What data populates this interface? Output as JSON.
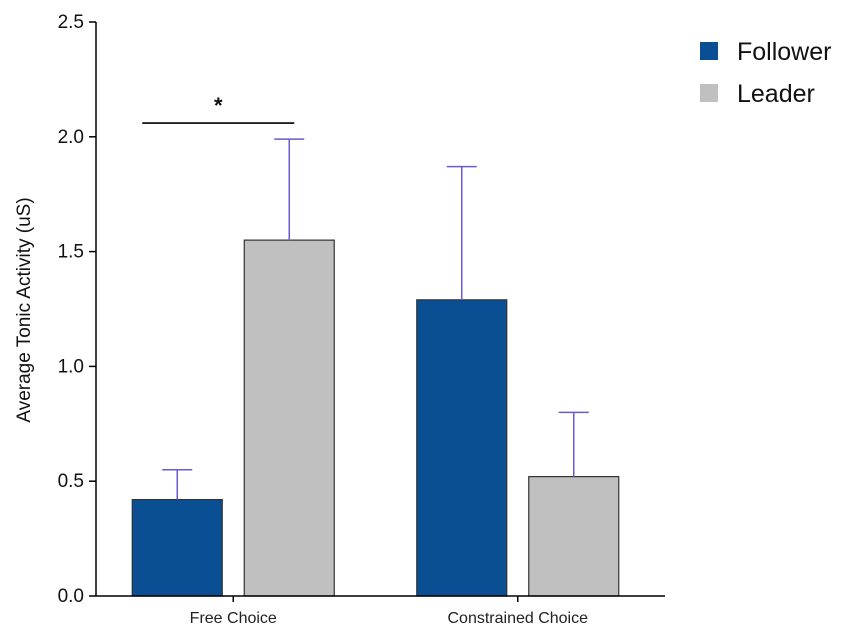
{
  "chart_data": {
    "type": "bar",
    "title": "",
    "xlabel": "",
    "ylabel": "Average Tonic Activity (uS)",
    "ylim": [
      0,
      2.5
    ],
    "yticks": [
      "0.0",
      "0.5",
      "1.0",
      "1.5",
      "2.0",
      "2.5"
    ],
    "categories": [
      "Free Choice",
      "Constrained Choice"
    ],
    "series": [
      {
        "name": "Follower",
        "color": "#0a4f93",
        "values": [
          0.42,
          1.29
        ],
        "errors": [
          0.13,
          0.58
        ]
      },
      {
        "name": "Leader",
        "color": "#c0c0c0",
        "values": [
          1.55,
          0.52
        ],
        "errors": [
          0.44,
          0.28
        ]
      }
    ],
    "significance": [
      {
        "category": "Free Choice",
        "between": [
          "Follower",
          "Leader"
        ],
        "label": "*"
      }
    ],
    "error_bar_color": "#6a5acd",
    "legend_position": "top-right",
    "grid": false
  }
}
